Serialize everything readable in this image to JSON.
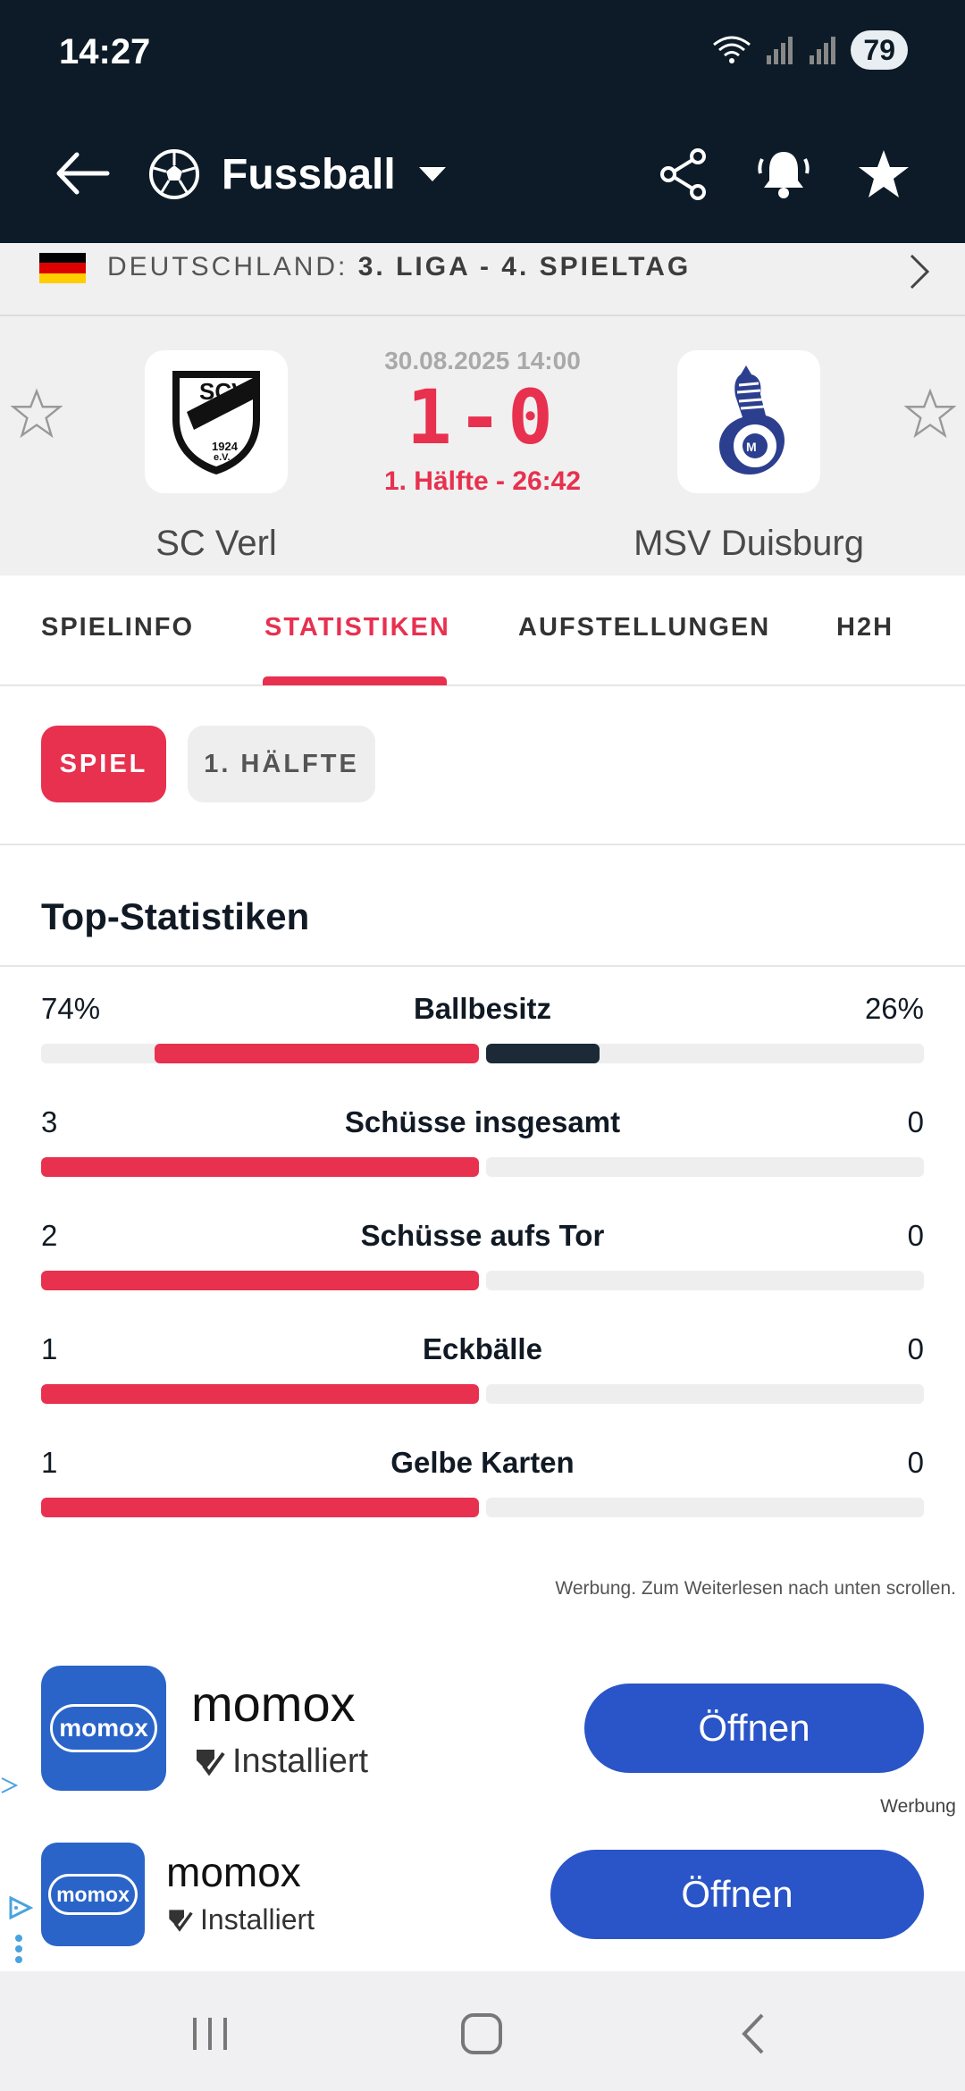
{
  "status_bar": {
    "time": "14:27",
    "battery": "79"
  },
  "app_bar": {
    "title": "Fussball"
  },
  "competition": {
    "country": "DEUTSCHLAND:",
    "league": "3. LIGA - 4. SPIELTAG"
  },
  "match": {
    "datetime": "30.08.2025 14:00",
    "score": "1-0",
    "status": "1. Hälfte - 26:42",
    "home": {
      "name": "SC Verl",
      "logo_text": "SCV",
      "logo_sub": "1924",
      "logo_sub2": "e.V."
    },
    "away": {
      "name": "MSV Duisburg"
    }
  },
  "tabs": [
    "SPIELINFO",
    "STATISTIKEN",
    "AUFSTELLUNGEN",
    "H2H"
  ],
  "period_filters": [
    "SPIEL",
    "1. HÄLFTE"
  ],
  "section_title": "Top-Statistiken",
  "stats": [
    {
      "label": "Ballbesitz",
      "home": "74%",
      "away": "26%",
      "home_share": 0.74,
      "away_share": 0.26
    },
    {
      "label": "Schüsse insgesamt",
      "home": "3",
      "away": "0",
      "home_share": 1,
      "away_share": 0
    },
    {
      "label": "Schüsse aufs Tor",
      "home": "2",
      "away": "0",
      "home_share": 1,
      "away_share": 0
    },
    {
      "label": "Eckbälle",
      "home": "1",
      "away": "0",
      "home_share": 1,
      "away_share": 0
    },
    {
      "label": "Gelbe Karten",
      "home": "1",
      "away": "0",
      "home_share": 1,
      "away_share": 0
    }
  ],
  "ad_note": "Werbung. Zum Weiterlesen nach unten scrollen.",
  "ads": [
    {
      "app": "momox",
      "icon_text": "momox",
      "state": "Installiert",
      "button": "Öffnen"
    },
    {
      "app": "momox",
      "icon_text": "momox",
      "state": "Installiert",
      "button": "Öffnen"
    }
  ],
  "ad_label": "Werbung",
  "colors": {
    "accent": "#e8304f",
    "dark": "#0c1b27",
    "ad_blue": "#2a55c8"
  }
}
